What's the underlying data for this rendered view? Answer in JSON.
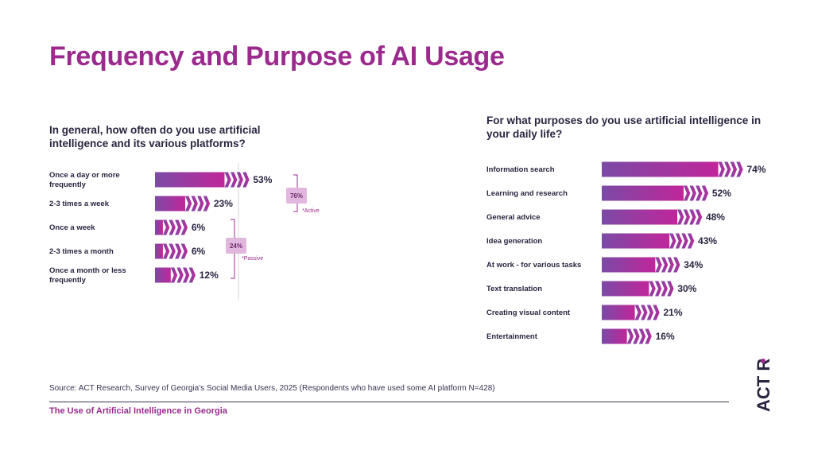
{
  "title": "Frequency and Purpose of AI Usage",
  "chart_data": [
    {
      "type": "bar",
      "title": "In general, how often do you use artificial intelligence and its various platforms?",
      "categories": [
        "Once a day or more frequently",
        "2-3 times a week",
        "Once a week",
        "2-3 times a month",
        "Once a month or less frequently"
      ],
      "values": [
        53,
        23,
        6,
        6,
        12
      ],
      "value_labels": [
        "53%",
        "23%",
        "6%",
        "6%",
        "12%"
      ],
      "groups": [
        {
          "label": "76%",
          "note": "*Active",
          "members": [
            0,
            1
          ]
        },
        {
          "label": "24%",
          "note": "*Passive",
          "members": [
            2,
            3,
            4
          ]
        }
      ]
    },
    {
      "type": "bar",
      "title": "For what purposes do you use artificial intelligence in your daily life?",
      "categories": [
        "Information search",
        "Learning and research",
        "General advice",
        "Idea generation",
        "At work - for various tasks",
        "Text translation",
        "Creating visual content",
        "Entertainment"
      ],
      "values": [
        74,
        52,
        48,
        43,
        34,
        30,
        21,
        16
      ],
      "value_labels": [
        "74%",
        "52%",
        "48%",
        "43%",
        "34%",
        "30%",
        "21%",
        "16%"
      ]
    }
  ],
  "source": "Source: ACT Research, Survey of Georgia's Social Media Users, 2025 (Respondents who have used some AI platform N=428)",
  "footer": "The Use of Artificial Intelligence in Georgia",
  "colors": {
    "accent": "#9c2a8e",
    "bar_start": "#7b4aa6",
    "bar_end": "#c0269a",
    "text": "#2b2440"
  },
  "logo": {
    "text": "ACT R.",
    "icon": "act-research-logo"
  }
}
